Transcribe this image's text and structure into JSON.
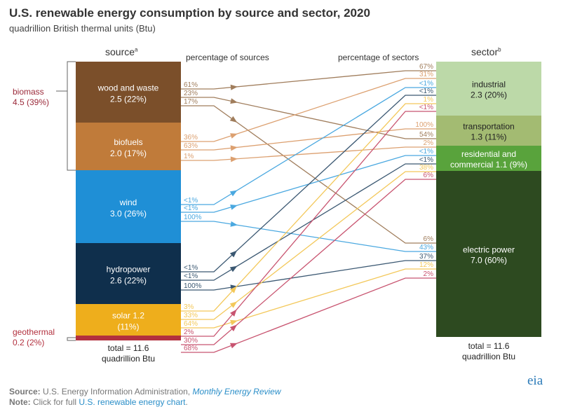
{
  "title": "U.S. renewable energy consumption by source and sector, 2020",
  "subtitle": "quadrillion British thermal units (Btu)",
  "headers": {
    "source": "source",
    "source_sup": "a",
    "pct_sources": "percentage of sources",
    "pct_sectors": "percentage of sectors",
    "sector": "sector",
    "sector_sup": "b"
  },
  "biomass": {
    "name": "biomass",
    "value": "4.5 (39%)"
  },
  "geothermal_label": {
    "name": "geothermal",
    "value": "0.2 (2%)"
  },
  "sources": [
    {
      "name": "wood and waste",
      "value": "2.5 (22%)",
      "color": "#7b4f2a",
      "line": "#a07d5c"
    },
    {
      "name": "biofuels",
      "value": "2.0 (17%)",
      "color": "#c07b3a",
      "line": "#dca070"
    },
    {
      "name": "wind",
      "value": "3.0 (26%)",
      "color": "#1f8fd6",
      "line": "#4aa8e0"
    },
    {
      "name": "hydropower",
      "value": "2.6 (22%)",
      "color": "#0f2f4c",
      "line": "#3b5872"
    },
    {
      "name": "solar 1.2",
      "value": "(11%)",
      "color": "#eeae1c",
      "line": "#f3c85a"
    },
    {
      "name": "geothermal",
      "value": "",
      "color": "#b2303e",
      "line": "#c85470"
    }
  ],
  "sectors": [
    {
      "name": "industrial",
      "value": "2.3 (20%)",
      "color": "#bcd9a8"
    },
    {
      "name": "transportation",
      "value": "1.3 (11%)",
      "color": "#a3bb72"
    },
    {
      "name": "residential and",
      "value": "commercial 1.1 (9%)",
      "color": "#59a33c"
    },
    {
      "name": "electric power",
      "value": "7.0 (60%)",
      "color": "#2d4a20"
    }
  ],
  "source_total": [
    "total = 11.6",
    "quadrillion Btu"
  ],
  "sector_total": [
    "total = 11.6",
    "quadrillion Btu"
  ],
  "flows": [
    {
      "source": 0,
      "sector": 0,
      "pct_source": "61%",
      "pct_sector": "67%"
    },
    {
      "source": 0,
      "sector": 2,
      "pct_source": "23%",
      "pct_sector": "54%"
    },
    {
      "source": 0,
      "sector": 3,
      "pct_source": "17%",
      "pct_sector": "6%"
    },
    {
      "source": 1,
      "sector": 0,
      "pct_source": "36%",
      "pct_sector": "31%"
    },
    {
      "source": 1,
      "sector": 1,
      "pct_source": "63%",
      "pct_sector": "100%"
    },
    {
      "source": 1,
      "sector": 2,
      "pct_source": "1%",
      "pct_sector": "2%"
    },
    {
      "source": 2,
      "sector": 0,
      "pct_source": "<1%",
      "pct_sector": "<1%"
    },
    {
      "source": 2,
      "sector": 2,
      "pct_source": "<1%",
      "pct_sector": "<1%"
    },
    {
      "source": 2,
      "sector": 3,
      "pct_source": "100%",
      "pct_sector": "43%"
    },
    {
      "source": 3,
      "sector": 0,
      "pct_source": "<1%",
      "pct_sector": "<1%"
    },
    {
      "source": 3,
      "sector": 2,
      "pct_source": "<1%",
      "pct_sector": "<1%"
    },
    {
      "source": 3,
      "sector": 3,
      "pct_source": "100%",
      "pct_sector": "37%"
    },
    {
      "source": 4,
      "sector": 0,
      "pct_source": "3%",
      "pct_sector": "1%"
    },
    {
      "source": 4,
      "sector": 2,
      "pct_source": "33%",
      "pct_sector": "38%"
    },
    {
      "source": 4,
      "sector": 3,
      "pct_source": "64%",
      "pct_sector": "12%"
    },
    {
      "source": 5,
      "sector": 0,
      "pct_source": "2%",
      "pct_sector": "<1%"
    },
    {
      "source": 5,
      "sector": 2,
      "pct_source": "30%",
      "pct_sector": "6%"
    },
    {
      "source": 5,
      "sector": 3,
      "pct_source": "68%",
      "pct_sector": "2%"
    }
  ],
  "footer": {
    "source_label": "Source:",
    "source_text": "U.S. Energy Information Administration,",
    "source_link": "Monthly Energy Review",
    "note_label": "Note:",
    "note_text": "Click for full",
    "note_link": "U.S. renewable energy chart",
    "note_end": "."
  },
  "logo": "eia"
}
